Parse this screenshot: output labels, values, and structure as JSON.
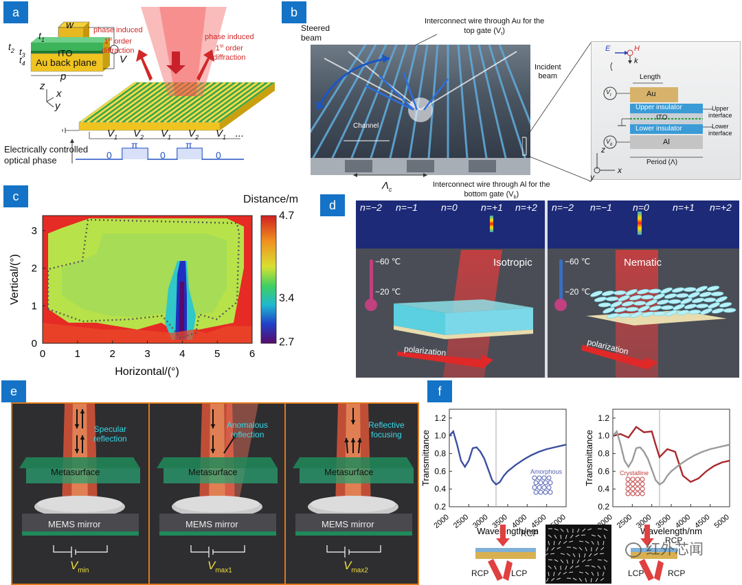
{
  "panels": {
    "a": {
      "label": "a",
      "dims": [
        "w",
        "t",
        "1",
        "t",
        "2",
        "t",
        "3",
        "t",
        "4",
        "V",
        "p"
      ],
      "ito": "ITO",
      "au": "Au back plane",
      "axes": [
        "z",
        "x",
        "y"
      ],
      "diffr_left": [
        "phase induced",
        "1",
        "st",
        " order",
        "diffraction"
      ],
      "diffr_right": [
        "phase induced",
        "1",
        "st",
        " order",
        "diffraction"
      ],
      "voltages": [
        "V",
        "1",
        "V",
        "2",
        "V",
        "1",
        "V",
        "2",
        "V",
        "1",
        "..."
      ],
      "phase_caption": [
        "Electrically controlled",
        "optical phase"
      ],
      "phase_values": [
        "0",
        "π",
        "0",
        "π",
        "0"
      ]
    },
    "b": {
      "label": "b",
      "steered": [
        "Steered",
        "beam"
      ],
      "top_wire": [
        "Interconnect wire through Au for the",
        "top gate (V",
        "t",
        ")"
      ],
      "incident": [
        "Incident",
        "beam"
      ],
      "channel": "Channel",
      "lambda": [
        "Λ",
        "c"
      ],
      "bottom_wire": [
        "Interconnect wire through Al for the",
        "bottom gate (V",
        "b",
        ")"
      ],
      "inset": {
        "E": "E",
        "H": "H",
        "k": "k",
        "length": "Length",
        "vt": [
          "V",
          "t"
        ],
        "vb": [
          "V",
          "b"
        ],
        "au": "Au",
        "upper_ins": "Upper insulator",
        "ito": "ITO",
        "lower_ins": "Lower insulator",
        "al": "Al",
        "upper_interface": [
          "Upper",
          "interface"
        ],
        "lower_interface": [
          "Lower",
          "interface"
        ],
        "period": "Period (Λ)",
        "axes": [
          "z",
          "y",
          "x"
        ]
      }
    },
    "c": {
      "label": "c",
      "colorbar_title": "Distance/m",
      "colorbar_ticks": [
        "4.7",
        "3.4",
        "2.7"
      ]
    },
    "d": {
      "label": "d",
      "orders_left": [
        "n=−2",
        "n=−1",
        "n=0",
        "n=+1",
        "n=+2"
      ],
      "orders_right": [
        "n=−2",
        "n=−1",
        "n=0",
        "n=+1",
        "n=+2"
      ],
      "state_left": "Isotropic",
      "state_right": "Nematic",
      "temps_left": [
        "−60 ℃",
        "−20 ℃"
      ],
      "temps_right": [
        "−60 ℃",
        "−20 ℃"
      ],
      "polarization": "polarization"
    },
    "e": {
      "label": "e",
      "captions": [
        [
          "Specular",
          "reflection"
        ],
        [
          "Anomalous",
          "reflection"
        ],
        [
          "Reflective",
          "focusing"
        ]
      ],
      "metasurface": "Metasurface",
      "mems": "MEMS mirror",
      "voltages": [
        [
          "V",
          "min"
        ],
        [
          "V",
          "max1"
        ],
        [
          "V",
          "max2"
        ]
      ]
    },
    "f": {
      "label": "f",
      "ylabel": "Transmittance",
      "xlabel": "Wavelength/nm",
      "yticks": [
        "1.2",
        "1.0",
        "0.8",
        "0.6",
        "0.4",
        "0.2"
      ],
      "xticks": [
        "2000",
        "2500",
        "3000",
        "3500",
        "4000",
        "4500",
        "5000"
      ],
      "amorphous": "Amorphous",
      "crystalline": "Crystalline",
      "rcp_top": "RCP",
      "rcp_bottom": "RCP",
      "lcp_left": "LCP",
      "rcp_top2": "RCP",
      "lcp_bottom2": "LCP",
      "rcp_bottom2": "RCP",
      "watermark": "红外芯闻"
    }
  },
  "chart_data": [
    {
      "type": "heatmap",
      "title": "",
      "xlabel": "Horizontal/(°)",
      "ylabel": "Vertical/(°)",
      "xlim": [
        0,
        6
      ],
      "ylim": [
        0,
        3.4
      ],
      "x_ticks": [
        "0",
        "1",
        "2",
        "3",
        "4",
        "5",
        "6"
      ],
      "y_ticks": [
        "0",
        "1",
        "2",
        "3"
      ],
      "colorbar": {
        "label": "Distance/m",
        "min": 2.7,
        "max": 4.7,
        "mid": 3.4
      }
    },
    {
      "type": "line",
      "xlabel": "Wavelength/nm",
      "ylabel": "Transmittance",
      "xlim": [
        2000,
        5000
      ],
      "ylim": [
        0.2,
        1.3
      ],
      "annotation": "Amorphous",
      "series": [
        {
          "name": "Amorphous",
          "color": "#3b4fa0",
          "x": [
            2000,
            2100,
            2200,
            2300,
            2400,
            2500,
            2600,
            2700,
            2800,
            2900,
            3000,
            3100,
            3200,
            3300,
            3400,
            3500,
            3700,
            3900,
            4100,
            4300,
            4500,
            4700,
            5000
          ],
          "y": [
            1.0,
            1.05,
            0.9,
            0.72,
            0.65,
            0.72,
            0.86,
            0.87,
            0.82,
            0.74,
            0.62,
            0.5,
            0.45,
            0.48,
            0.55,
            0.6,
            0.67,
            0.73,
            0.78,
            0.82,
            0.85,
            0.87,
            0.9
          ]
        }
      ]
    },
    {
      "type": "line",
      "xlabel": "Wavelength/nm",
      "ylabel": "Transmittance",
      "xlim": [
        2000,
        5000
      ],
      "ylim": [
        0.2,
        1.3
      ],
      "annotation": "Crystalline",
      "series": [
        {
          "name": "Crystalline",
          "color": "#a8282c",
          "x": [
            2000,
            2200,
            2400,
            2600,
            2800,
            3000,
            3100,
            3200,
            3400,
            3600,
            3800,
            4000,
            4200,
            4400,
            4600,
            4800,
            5000
          ],
          "y": [
            1.0,
            1.02,
            0.98,
            1.1,
            1.04,
            1.05,
            0.9,
            0.76,
            0.85,
            0.82,
            0.55,
            0.48,
            0.52,
            0.6,
            0.66,
            0.7,
            0.72
          ]
        },
        {
          "name": "Amorphous",
          "color": "#9a9a9a",
          "x": [
            2000,
            2100,
            2200,
            2300,
            2400,
            2500,
            2600,
            2700,
            2800,
            2900,
            3000,
            3100,
            3200,
            3300,
            3400,
            3500,
            3700,
            3900,
            4100,
            4300,
            4500,
            4700,
            5000
          ],
          "y": [
            1.0,
            1.05,
            0.9,
            0.72,
            0.65,
            0.72,
            0.86,
            0.87,
            0.82,
            0.74,
            0.62,
            0.5,
            0.45,
            0.48,
            0.55,
            0.6,
            0.67,
            0.73,
            0.78,
            0.82,
            0.85,
            0.87,
            0.9
          ]
        }
      ]
    }
  ]
}
